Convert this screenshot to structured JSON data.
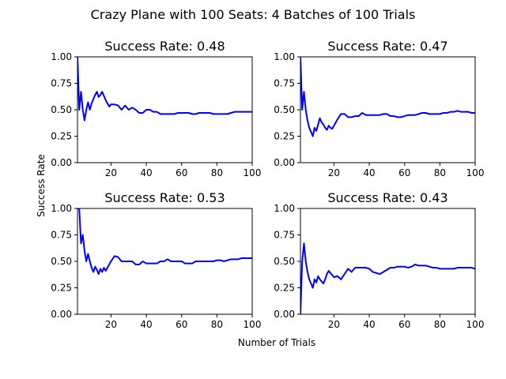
{
  "figure": {
    "title": "Crazy Plane with 100 Seats: 4 Batches of 100 Trials",
    "xlabel": "Number of Trials",
    "ylabel": "Success Rate"
  },
  "colors": {
    "line": "#0000ff",
    "axes": "#000000",
    "background": "#ffffff"
  },
  "chart_data": [
    {
      "type": "line",
      "title": "Success Rate: 0.48",
      "xlim": [
        1,
        100
      ],
      "ylim": [
        0,
        1
      ],
      "xticks": [
        "20",
        "40",
        "60",
        "80",
        "100"
      ],
      "yticks": [
        "0.00",
        "0.25",
        "0.50",
        "0.75",
        "1.00"
      ],
      "grid": false,
      "x": [
        1,
        2,
        3,
        4,
        5,
        6,
        7,
        8,
        9,
        10,
        11,
        12,
        13,
        14,
        15,
        16,
        17,
        18,
        19,
        20,
        22,
        24,
        26,
        28,
        30,
        32,
        34,
        36,
        38,
        40,
        42,
        44,
        46,
        48,
        50,
        52,
        54,
        56,
        58,
        60,
        62,
        64,
        66,
        68,
        70,
        72,
        74,
        76,
        78,
        80,
        82,
        84,
        86,
        88,
        90,
        92,
        94,
        96,
        98,
        100
      ],
      "y": [
        1.0,
        0.5,
        0.67,
        0.5,
        0.4,
        0.5,
        0.57,
        0.5,
        0.56,
        0.6,
        0.64,
        0.67,
        0.62,
        0.64,
        0.67,
        0.63,
        0.59,
        0.56,
        0.53,
        0.55,
        0.55,
        0.54,
        0.5,
        0.54,
        0.5,
        0.52,
        0.5,
        0.47,
        0.47,
        0.5,
        0.5,
        0.48,
        0.48,
        0.46,
        0.46,
        0.46,
        0.46,
        0.46,
        0.47,
        0.47,
        0.47,
        0.47,
        0.46,
        0.46,
        0.47,
        0.47,
        0.47,
        0.47,
        0.46,
        0.46,
        0.46,
        0.46,
        0.46,
        0.47,
        0.48,
        0.48,
        0.48,
        0.48,
        0.48,
        0.48
      ]
    },
    {
      "type": "line",
      "title": "Success Rate: 0.47",
      "xlim": [
        1,
        100
      ],
      "ylim": [
        0,
        1
      ],
      "xticks": [
        "20",
        "40",
        "60",
        "80",
        "100"
      ],
      "yticks": [
        "0.00",
        "0.25",
        "0.50",
        "0.75",
        "1.00"
      ],
      "grid": false,
      "x": [
        1,
        2,
        3,
        4,
        5,
        6,
        7,
        8,
        9,
        10,
        11,
        12,
        13,
        14,
        15,
        16,
        17,
        18,
        19,
        20,
        22,
        24,
        26,
        28,
        30,
        32,
        34,
        36,
        38,
        40,
        42,
        44,
        46,
        48,
        50,
        52,
        54,
        56,
        58,
        60,
        62,
        64,
        66,
        68,
        70,
        72,
        74,
        76,
        78,
        80,
        82,
        84,
        86,
        88,
        90,
        92,
        94,
        96,
        98,
        100
      ],
      "y": [
        1.0,
        0.5,
        0.67,
        0.5,
        0.4,
        0.33,
        0.29,
        0.25,
        0.33,
        0.3,
        0.36,
        0.42,
        0.38,
        0.36,
        0.33,
        0.31,
        0.35,
        0.33,
        0.32,
        0.35,
        0.41,
        0.46,
        0.46,
        0.43,
        0.43,
        0.44,
        0.44,
        0.47,
        0.45,
        0.45,
        0.45,
        0.45,
        0.45,
        0.46,
        0.46,
        0.44,
        0.44,
        0.43,
        0.43,
        0.44,
        0.45,
        0.45,
        0.45,
        0.46,
        0.47,
        0.47,
        0.46,
        0.46,
        0.46,
        0.46,
        0.47,
        0.47,
        0.48,
        0.48,
        0.49,
        0.48,
        0.48,
        0.48,
        0.47,
        0.47
      ]
    },
    {
      "type": "line",
      "title": "Success Rate: 0.53",
      "xlim": [
        1,
        100
      ],
      "ylim": [
        0,
        1
      ],
      "xticks": [
        "20",
        "40",
        "60",
        "80",
        "100"
      ],
      "yticks": [
        "0.00",
        "0.25",
        "0.50",
        "0.75",
        "1.00"
      ],
      "grid": false,
      "x": [
        1,
        2,
        3,
        4,
        5,
        6,
        7,
        8,
        9,
        10,
        11,
        12,
        13,
        14,
        15,
        16,
        17,
        18,
        19,
        20,
        22,
        24,
        26,
        28,
        30,
        32,
        34,
        36,
        38,
        40,
        42,
        44,
        46,
        48,
        50,
        52,
        54,
        56,
        58,
        60,
        62,
        64,
        66,
        68,
        70,
        72,
        74,
        76,
        78,
        80,
        82,
        84,
        86,
        88,
        90,
        92,
        94,
        96,
        98,
        100
      ],
      "y": [
        1.0,
        1.0,
        0.67,
        0.75,
        0.6,
        0.5,
        0.57,
        0.5,
        0.44,
        0.4,
        0.45,
        0.42,
        0.38,
        0.43,
        0.4,
        0.44,
        0.41,
        0.44,
        0.47,
        0.5,
        0.55,
        0.54,
        0.5,
        0.5,
        0.5,
        0.5,
        0.47,
        0.47,
        0.5,
        0.48,
        0.48,
        0.48,
        0.48,
        0.5,
        0.5,
        0.52,
        0.5,
        0.5,
        0.5,
        0.5,
        0.48,
        0.48,
        0.48,
        0.5,
        0.5,
        0.5,
        0.5,
        0.5,
        0.5,
        0.51,
        0.51,
        0.5,
        0.51,
        0.52,
        0.52,
        0.52,
        0.53,
        0.53,
        0.53,
        0.53
      ]
    },
    {
      "type": "line",
      "title": "Success Rate: 0.43",
      "xlim": [
        1,
        100
      ],
      "ylim": [
        0,
        1
      ],
      "xticks": [
        "20",
        "40",
        "60",
        "80",
        "100"
      ],
      "yticks": [
        "0.00",
        "0.25",
        "0.50",
        "0.75",
        "1.00"
      ],
      "grid": false,
      "x": [
        1,
        2,
        3,
        4,
        5,
        6,
        7,
        8,
        9,
        10,
        11,
        12,
        13,
        14,
        15,
        16,
        17,
        18,
        19,
        20,
        22,
        24,
        26,
        28,
        30,
        32,
        34,
        36,
        38,
        40,
        42,
        44,
        46,
        48,
        50,
        52,
        54,
        56,
        58,
        60,
        62,
        64,
        66,
        68,
        70,
        72,
        74,
        76,
        78,
        80,
        82,
        84,
        86,
        88,
        90,
        92,
        94,
        96,
        98,
        100
      ],
      "y": [
        0.0,
        0.5,
        0.67,
        0.5,
        0.4,
        0.33,
        0.29,
        0.25,
        0.33,
        0.3,
        0.36,
        0.33,
        0.31,
        0.29,
        0.33,
        0.38,
        0.41,
        0.39,
        0.37,
        0.35,
        0.36,
        0.33,
        0.38,
        0.43,
        0.4,
        0.44,
        0.44,
        0.44,
        0.44,
        0.43,
        0.4,
        0.39,
        0.38,
        0.4,
        0.42,
        0.44,
        0.44,
        0.45,
        0.45,
        0.45,
        0.44,
        0.45,
        0.47,
        0.46,
        0.46,
        0.46,
        0.45,
        0.44,
        0.44,
        0.43,
        0.43,
        0.43,
        0.43,
        0.43,
        0.44,
        0.44,
        0.44,
        0.44,
        0.44,
        0.43
      ]
    }
  ]
}
